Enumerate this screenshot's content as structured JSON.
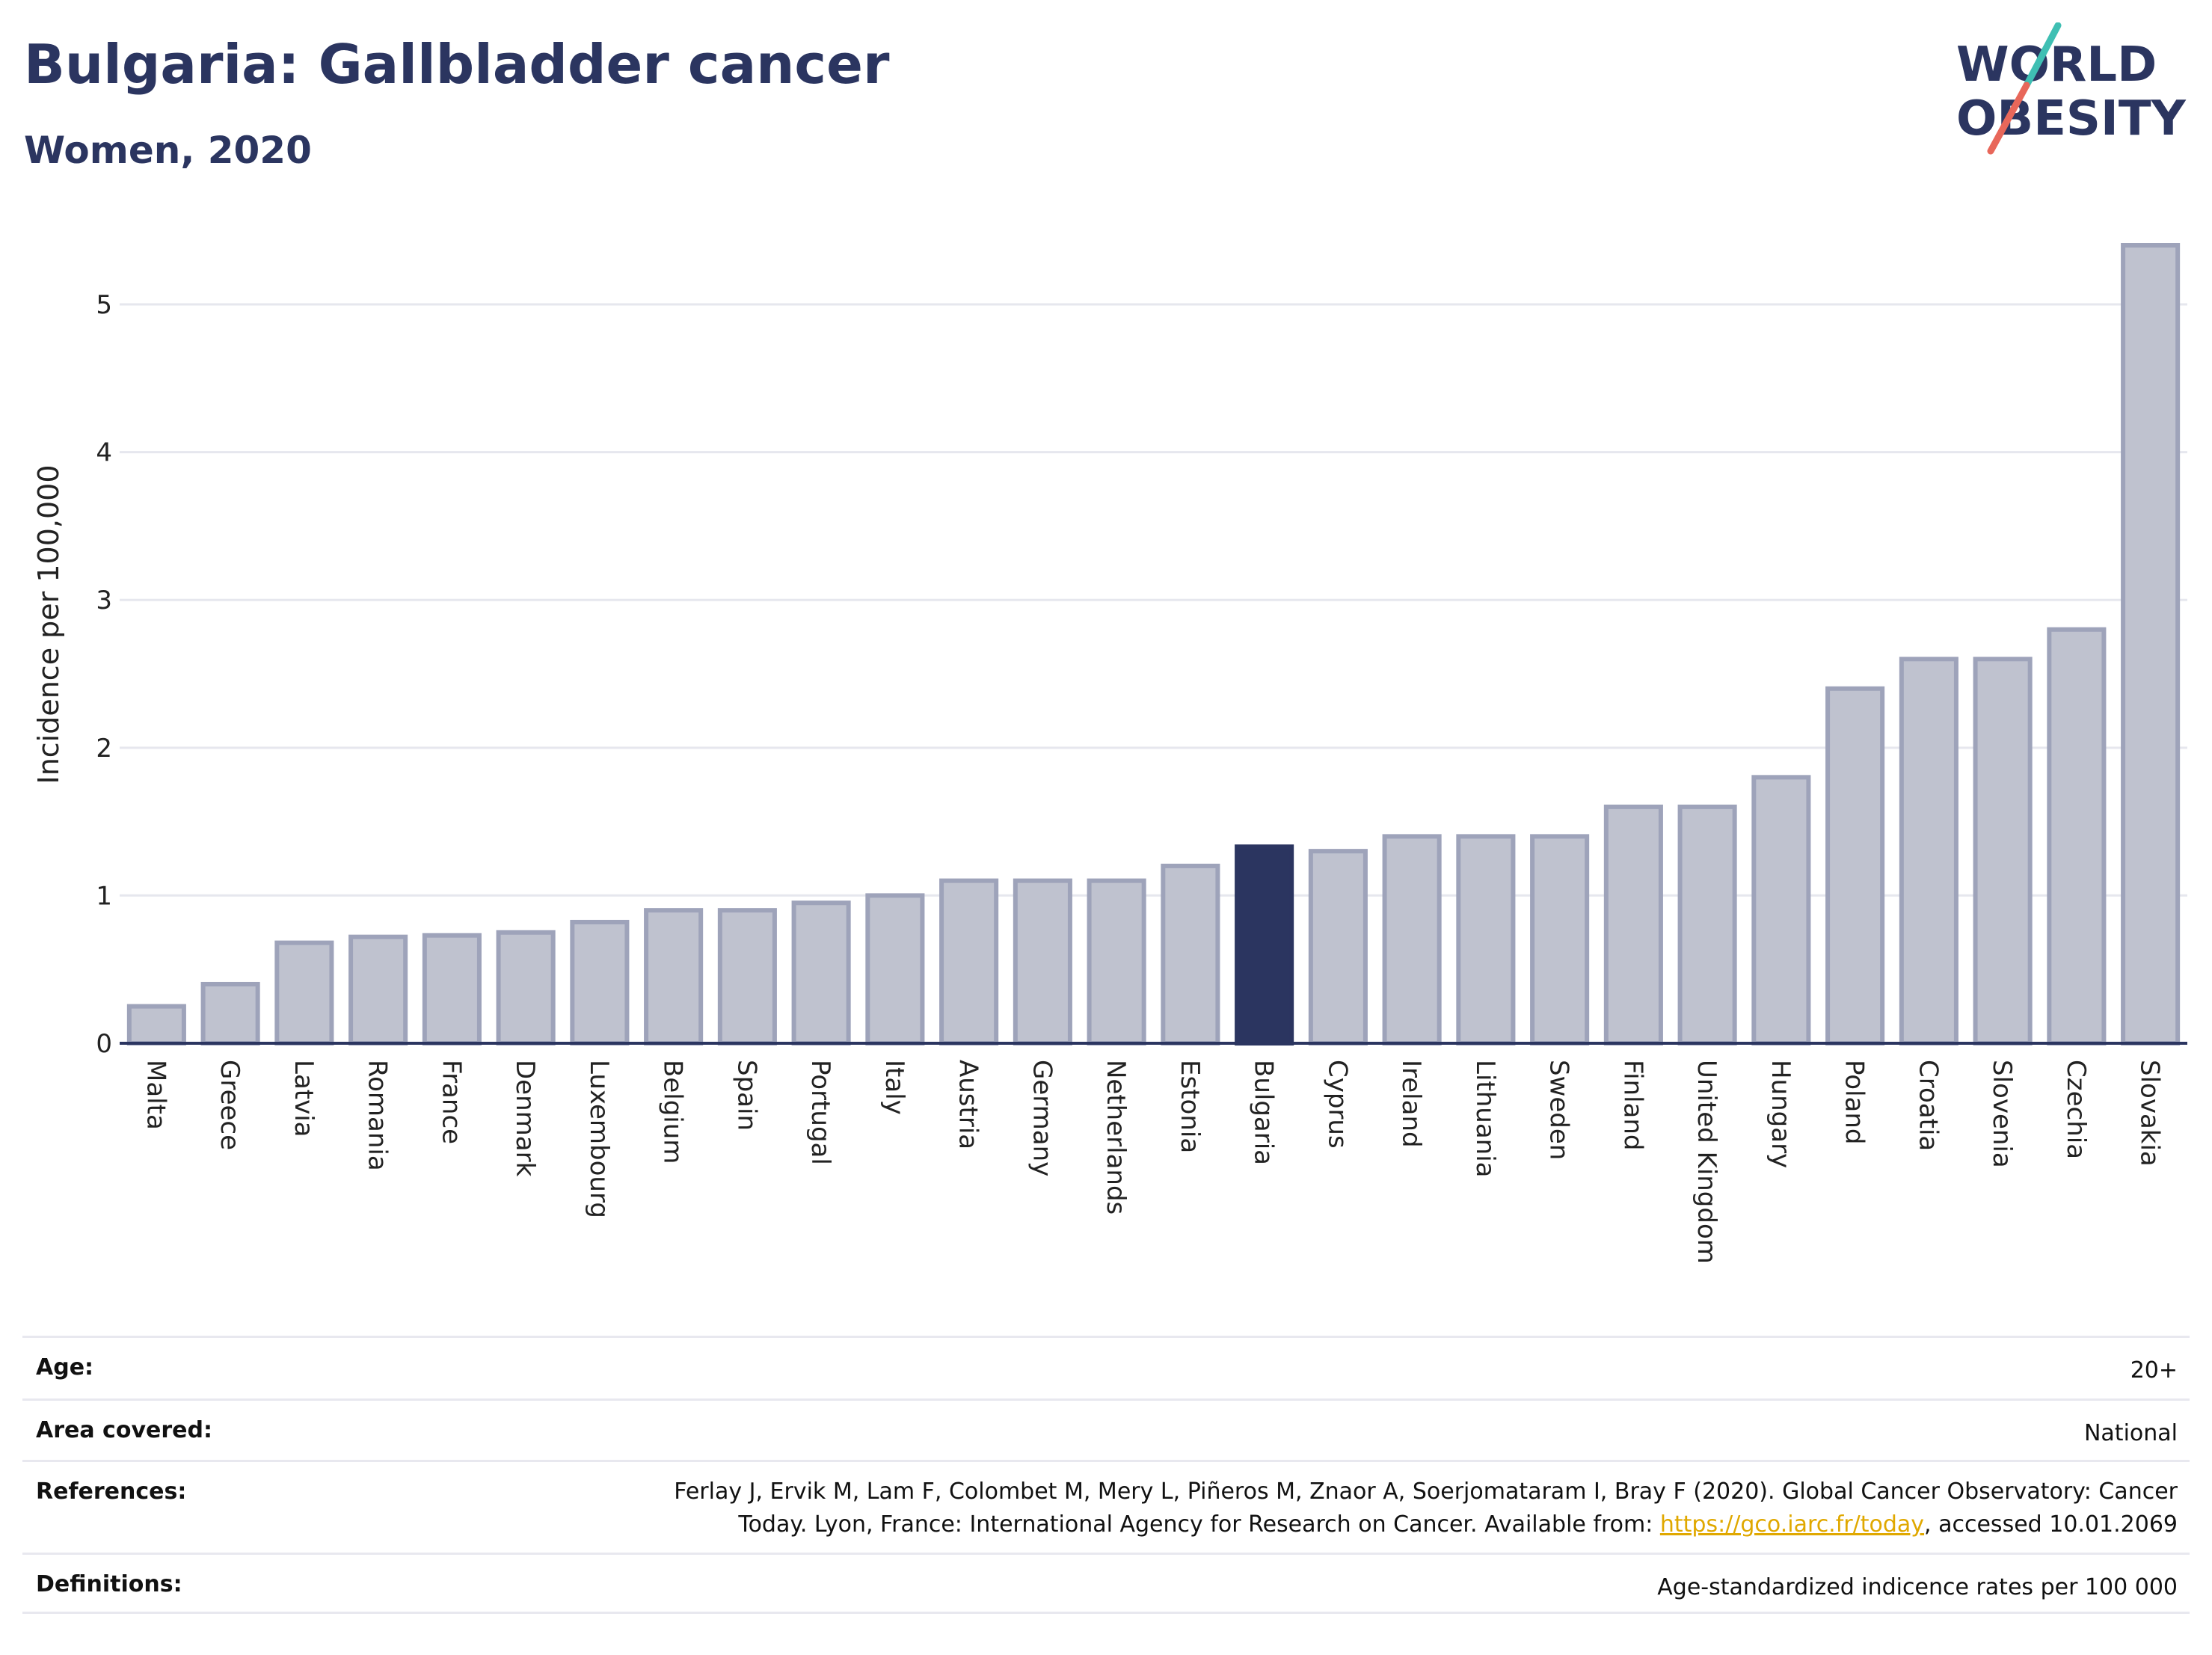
{
  "header": {
    "title": "Bulgaria: Gallbladder cancer",
    "subtitle": "Women, 2020"
  },
  "logo": {
    "line1": "WORLD",
    "line2": "OBESITY",
    "colors": {
      "text": "#2b3560",
      "slash_teal": "#3fbfb3",
      "slash_red": "#e8675a"
    }
  },
  "chart_data": {
    "type": "bar",
    "ylabel": "Incidence per 100,000",
    "xlabel": "",
    "ylim": [
      0,
      5.4
    ],
    "yticks": [
      0,
      1,
      2,
      3,
      4,
      5
    ],
    "grid": true,
    "highlight": "Bulgaria",
    "colors": {
      "bar": "#bfc2cf",
      "bar_border": "#9ea3ba",
      "highlight": "#2b3560"
    },
    "categories": [
      "Malta",
      "Greece",
      "Latvia",
      "Romania",
      "France",
      "Denmark",
      "Luxembourg",
      "Belgium",
      "Spain",
      "Portugal",
      "Italy",
      "Austria",
      "Germany",
      "Netherlands",
      "Estonia",
      "Bulgaria",
      "Cyprus",
      "Ireland",
      "Lithuania",
      "Sweden",
      "Finland",
      "United Kingdom",
      "Hungary",
      "Poland",
      "Croatia",
      "Slovenia",
      "Czechia",
      "Slovakia"
    ],
    "values": [
      0.25,
      0.4,
      0.68,
      0.72,
      0.73,
      0.75,
      0.82,
      0.9,
      0.9,
      0.95,
      1.0,
      1.1,
      1.1,
      1.1,
      1.2,
      1.33,
      1.3,
      1.4,
      1.4,
      1.4,
      1.6,
      1.6,
      1.8,
      2.4,
      2.6,
      2.6,
      2.8,
      5.4
    ]
  },
  "meta": {
    "age": {
      "label": "Age:",
      "value": "20+"
    },
    "area": {
      "label": "Area covered:",
      "value": "National"
    },
    "references": {
      "label": "References:",
      "text_line1": "Ferlay J, Ervik M, Lam F, Colombet M, Mery L, Piñeros M, Znaor A, Soerjomataram I, Bray F (2020). Global Cancer Observatory: Cancer",
      "text_line2_before": "Today. Lyon, France: International Agency for Research on Cancer. Available from: ",
      "link": "https://gco.iarc.fr/today",
      "text_line2_after": ", accessed 10.01.2069"
    },
    "definitions": {
      "label": "Definitions:",
      "value": "Age-standardized indicence rates per 100 000"
    }
  }
}
